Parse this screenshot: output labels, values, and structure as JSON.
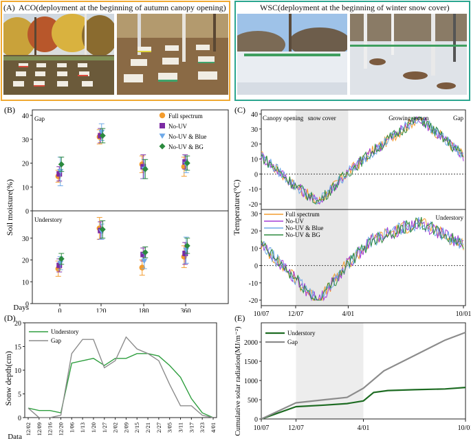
{
  "panelA": {
    "label": "(A)",
    "title": "ACO(deployment at the beginning of autumn canopy opening)",
    "border_color": "#f0a830"
  },
  "panelWSC": {
    "title": "WSC(deployment at the beginning of winter snow cover)",
    "border_color": "#2aa58f"
  },
  "chart_data": [
    {
      "panel": "(B)",
      "type": "scatter",
      "ylabel": "Soil moisture(%)",
      "xlabel": "Days",
      "categories": [
        "0",
        "120",
        "180",
        "360"
      ],
      "ylim": [
        0,
        40
      ],
      "yticks": [
        0,
        10,
        20,
        30,
        40
      ],
      "legend": [
        "Full spectrum",
        "No-UV",
        "No-UV & Blue",
        "No-UV & BG"
      ],
      "colors": [
        "#f39c2e",
        "#7b2aa3",
        "#6ea9e8",
        "#2b8a3e"
      ],
      "subplots": [
        {
          "title": "Gap",
          "series": [
            {
              "name": "Full spectrum",
              "values": [
                14.5,
                31,
                19.5,
                18.5
              ],
              "err": [
                2.5,
                3,
                3.5,
                4
              ]
            },
            {
              "name": "No-UV",
              "values": [
                15.5,
                31.5,
                18.5,
                20.5
              ],
              "err": [
                3,
                3,
                5,
                3
              ]
            },
            {
              "name": "No-UV & Blue",
              "values": [
                16.5,
                33,
                17.5,
                19.5
              ],
              "err": [
                6,
                3.5,
                4,
                3.5
              ]
            },
            {
              "name": "No-UV & BG",
              "values": [
                19.5,
                31.5,
                17.5,
                20
              ],
              "err": [
                3,
                3,
                4,
                3
              ]
            }
          ]
        },
        {
          "title": "Understory",
          "series": [
            {
              "name": "Full spectrum",
              "values": [
                16,
                34.5,
                16.5,
                21.5
              ],
              "err": [
                3.5,
                5,
                3.5,
                5
              ]
            },
            {
              "name": "No-UV",
              "values": [
                17.5,
                33.5,
                22.5,
                23
              ],
              "err": [
                3,
                4,
                3,
                5
              ]
            },
            {
              "name": "No-UV & Blue",
              "values": [
                18.5,
                33,
                19.5,
                24.5
              ],
              "err": [
                3,
                3.5,
                3.5,
                6
              ]
            },
            {
              "name": "No-UV & BG",
              "values": [
                20.5,
                34,
                23.5,
                26.5
              ],
              "err": [
                2.5,
                4,
                2.5,
                3.5
              ]
            }
          ]
        }
      ]
    },
    {
      "panel": "(C)",
      "type": "line",
      "ylabel": "Temperature(°C)",
      "x_ticks": [
        "10/07",
        "12/07",
        "4/01",
        "10/01"
      ],
      "ylim": [
        -20,
        40
      ],
      "yticks": [
        -20,
        -10,
        0,
        10,
        20,
        30,
        40
      ],
      "shaded_period": [
        "12/07",
        "4/01"
      ],
      "period_labels": [
        "Canopy opening",
        "snow cover",
        "Growing season"
      ],
      "legend": [
        "Full spectrum",
        "No-UV",
        "No-UV & Blue",
        "No-UV & BG"
      ],
      "colors": [
        "#f39c2e",
        "#a23bd6",
        "#6ea9e8",
        "#2b8a3e"
      ],
      "subplots": [
        {
          "title": "Gap",
          "min": -19,
          "max": 38
        },
        {
          "title": "Understory",
          "min": -21,
          "max": 25
        }
      ]
    },
    {
      "panel": "(D)",
      "type": "line",
      "ylabel": "Sonw depth(cm)",
      "xlabel": "Data",
      "categories": [
        "12/02",
        "12/09",
        "12/16",
        "12/20",
        "1/06",
        "1/13",
        "1/20",
        "1/27",
        "2/02",
        "2/09",
        "2/15",
        "2/21",
        "2/27",
        "3/05",
        "3/11",
        "3/17",
        "3/23",
        "4/01"
      ],
      "ylim": [
        0,
        20
      ],
      "yticks": [
        0,
        5,
        10,
        15,
        20
      ],
      "series": [
        {
          "name": "Understory",
          "color": "#2e9e3e",
          "values": [
            2,
            1.5,
            1.5,
            1,
            11.5,
            12,
            12.5,
            11,
            12.5,
            12.5,
            13.5,
            13.5,
            13,
            11,
            8.5,
            4,
            1,
            0
          ]
        },
        {
          "name": "Gap",
          "color": "#8c8c8c",
          "values": [
            2,
            0,
            0,
            0.5,
            13.5,
            16.5,
            16.5,
            10.5,
            12,
            17,
            14.5,
            13.5,
            12,
            7,
            2.5,
            2.5,
            0.5,
            0
          ]
        }
      ]
    },
    {
      "panel": "(E)",
      "type": "line",
      "ylabel": "Cumulative solar radiation(MJ/m⁻²)",
      "x_ticks": [
        "10/07",
        "12/07",
        "4/01",
        "10/01"
      ],
      "ylim": [
        0,
        2500
      ],
      "yticks": [
        0,
        500,
        1000,
        1500,
        2000
      ],
      "shaded_period": [
        "12/07",
        "4/01"
      ],
      "series": [
        {
          "name": "Understory",
          "color": "#1d6b22",
          "x": [
            0,
            0.17,
            0.31,
            0.42,
            0.5,
            0.55,
            0.62,
            0.75,
            0.9,
            1.0
          ],
          "values": [
            0,
            320,
            360,
            400,
            470,
            690,
            740,
            760,
            780,
            820
          ]
        },
        {
          "name": "Gap",
          "color": "#8c8c8c",
          "x": [
            0,
            0.17,
            0.31,
            0.42,
            0.5,
            0.6,
            0.75,
            0.9,
            1.0
          ],
          "values": [
            0,
            420,
            500,
            560,
            800,
            1250,
            1650,
            2050,
            2250
          ]
        }
      ]
    }
  ]
}
